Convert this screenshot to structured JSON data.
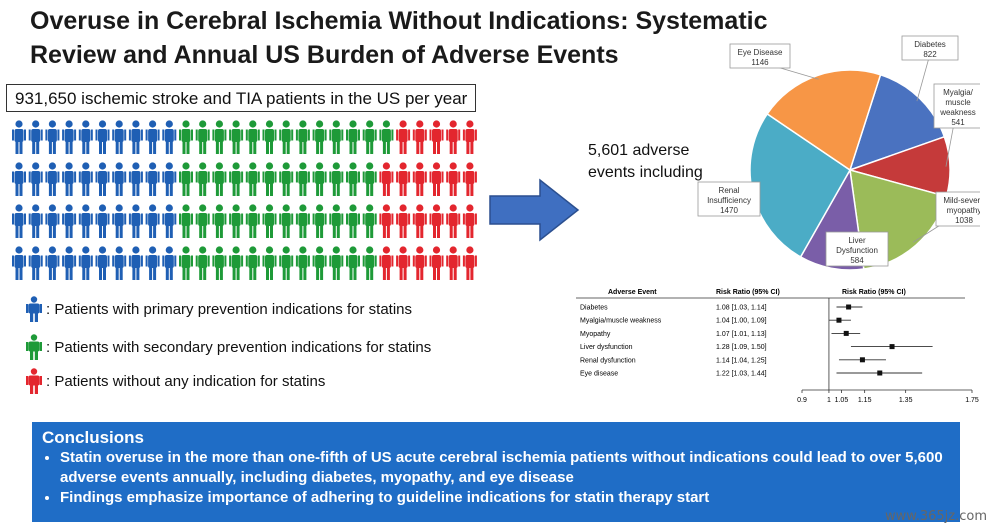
{
  "title": "Overuse in Cerebral Ischemia Without Indications: Systematic Review and Annual US Burden of Adverse Events",
  "patients_label": "931,650 ischemic stroke and TIA patients in the US per year",
  "grid_colors": {
    "primary": "#1f5fb4",
    "secondary": "#1e9a38",
    "none": "#e3262e"
  },
  "legend": [
    {
      "label": ": Patients with primary prevention indications for statins",
      "color": "#1f5fb4"
    },
    {
      "label": ": Patients with secondary prevention indications for statins",
      "color": "#1e9a38"
    },
    {
      "label": ": Patients without any indication for statins",
      "color": "#e3262e"
    }
  ],
  "adverse_events_text": "5,601 adverse events including",
  "pie": {
    "slices": [
      {
        "name": "Diabetes",
        "value": 822,
        "color": "#4a72c0"
      },
      {
        "name": "Myalgia/ muscle weakness",
        "value": 541,
        "color": "#c53a3a"
      },
      {
        "name": "Mild-severe myopathy",
        "value": 1038,
        "color": "#9bbb59"
      },
      {
        "name": "Liver Dysfunction",
        "value": 584,
        "color": "#7a5ea8"
      },
      {
        "name": "Renal Insufficiency",
        "value": 1470,
        "color": "#4bacc6"
      },
      {
        "name": "Eye Disease",
        "value": 1146,
        "color": "#f79646"
      }
    ]
  },
  "forest": {
    "col_event": "Adverse Event",
    "col_rr": "Risk Ratio (95% CI)",
    "col_rr2": "Risk Ratio (95% CI)",
    "rows": [
      {
        "event": "Diabetes",
        "rr_text": "1.08 [1.03, 1.14]",
        "rr": 1.08,
        "lo": 1.03,
        "hi": 1.14
      },
      {
        "event": "Myalgia/muscle weakness",
        "rr_text": "1.04 [1.00, 1.09]",
        "rr": 1.04,
        "lo": 1.0,
        "hi": 1.09
      },
      {
        "event": "Myopathy",
        "rr_text": "1.07 [1.01, 1.13]",
        "rr": 1.07,
        "lo": 1.01,
        "hi": 1.13
      },
      {
        "event": "Liver dysfunction",
        "rr_text": "1.28 [1.09, 1.50]",
        "rr": 1.28,
        "lo": 1.09,
        "hi": 1.5
      },
      {
        "event": "Renal dysfunction",
        "rr_text": "1.14 [1.04, 1.25]",
        "rr": 1.14,
        "lo": 1.04,
        "hi": 1.25
      },
      {
        "event": "Eye disease",
        "rr_text": "1.22 [1.03, 1.44]",
        "rr": 1.22,
        "lo": 1.03,
        "hi": 1.44
      }
    ],
    "ticks": [
      "0.9",
      "1",
      "1.05",
      "1.15",
      "1.35",
      "1.75"
    ]
  },
  "conclusions": {
    "heading": "Conclusions",
    "bullets": [
      "Statin overuse in the more than one-fifth of US acute cerebral ischemia patients without indications could lead to over 5,600 adverse events annually, including diabetes, myopathy, and eye disease",
      "Findings emphasize importance of adhering to guideline indications for statin therapy start"
    ]
  },
  "watermark": "www.365jz.com"
}
